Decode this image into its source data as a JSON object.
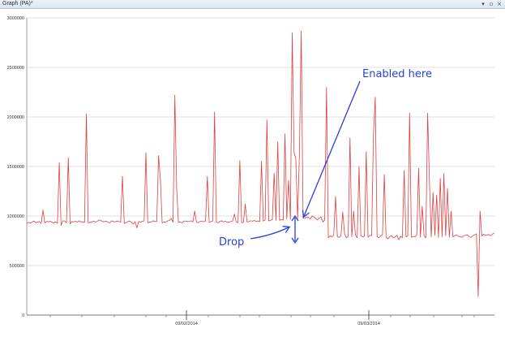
{
  "window": {
    "title": "Graph (PA)*",
    "buttons": [
      {
        "name": "pin-icon",
        "glyph": "▾"
      },
      {
        "name": "float-icon",
        "glyph": "▫"
      },
      {
        "name": "close-icon",
        "glyph": "×"
      }
    ]
  },
  "chart_data": {
    "type": "line",
    "title": "",
    "xlabel": "",
    "ylabel": "",
    "x_ticks": [
      "09/02/2014",
      "09/03/2014"
    ],
    "ylim": [
      0,
      3000000
    ],
    "y_ticks": [
      0,
      500000,
      1000000,
      1500000,
      2000000,
      2500000,
      3000000
    ],
    "grid": true,
    "series_color": "#e04040",
    "series": [
      {
        "values": [
          930000,
          935000,
          928000,
          940000,
          950000,
          932000,
          938000,
          945000,
          925000,
          1060000,
          930000,
          944000,
          942000,
          948000,
          936000,
          930000,
          940000,
          928000,
          1540000,
          905000,
          952000,
          950000,
          932000,
          1590000,
          920000,
          945000,
          940000,
          948000,
          938000,
          952000,
          940000,
          942000,
          935000,
          2030000,
          930000,
          936000,
          940000,
          950000,
          938000,
          946000,
          960000,
          955000,
          942000,
          945000,
          948000,
          938000,
          930000,
          952000,
          945000,
          940000,
          950000,
          944000,
          940000,
          1400000,
          925000,
          932000,
          945000,
          950000,
          936000,
          918000,
          942000,
          880000,
          946000,
          935000,
          948000,
          950000,
          1640000,
          930000,
          938000,
          940000,
          952000,
          944000,
          945000,
          1610000,
          1370000,
          930000,
          940000,
          938000,
          950000,
          955000,
          975000,
          938000,
          2220000,
          1290000,
          936000,
          940000,
          930000,
          948000,
          950000,
          944000,
          946000,
          952000,
          940000,
          1050000,
          938000,
          932000,
          945000,
          950000,
          940000,
          950000,
          1400000,
          935000,
          944000,
          950000,
          2050000,
          940000,
          930000,
          946000,
          952000,
          940000,
          948000,
          938000,
          936000,
          945000,
          950000,
          1020000,
          940000,
          932000,
          1560000,
          930000,
          938000,
          1120000,
          940000,
          944000,
          952000,
          948000,
          955000,
          945000,
          950000,
          945000,
          1550000,
          948000,
          960000,
          1970000,
          950000,
          958000,
          962000,
          1430000,
          955000,
          1750000,
          956000,
          964000,
          958000,
          1830000,
          970000,
          1360000,
          965000,
          2850000,
          1640000,
          1580000,
          975000,
          1630000,
          2870000,
          980000,
          975000,
          990000,
          985000,
          970000,
          1000000,
          990000,
          975000,
          960000,
          980000,
          990000,
          940000,
          960000,
          2300000,
          780000,
          800000,
          790000,
          805000,
          1200000,
          790000,
          785000,
          800000,
          1040000,
          820000,
          780000,
          795000,
          1790000,
          790000,
          1050000,
          810000,
          780000,
          1500000,
          800000,
          790000,
          795000,
          1650000,
          785000,
          805000,
          800000,
          1830000,
          2200000,
          790000,
          780000,
          800000,
          810000,
          1420000,
          785000,
          770000,
          790000,
          800000,
          780000,
          790000,
          805000,
          760000,
          795000,
          780000,
          1460000,
          790000,
          800000,
          2040000,
          785000,
          795000,
          790000,
          810000,
          1480000,
          785000,
          1100000,
          800000,
          780000,
          2040000,
          1350000,
          790000,
          1240000,
          805000,
          1210000,
          785000,
          1380000,
          790000,
          1430000,
          800000,
          1280000,
          785000,
          1050000,
          790000,
          800000,
          810000,
          795000,
          790000,
          785000,
          800000,
          805000,
          810000,
          790000,
          785000,
          800000,
          810000,
          820000,
          185000,
          1050000,
          800000,
          815000,
          805000,
          810000,
          812000,
          800000,
          820000,
          825000
        ]
      }
    ],
    "annotations": [
      {
        "text": "Enabled here",
        "color": "#2a3fd9"
      },
      {
        "text": "Drop",
        "color": "#2a3fd9"
      }
    ]
  }
}
